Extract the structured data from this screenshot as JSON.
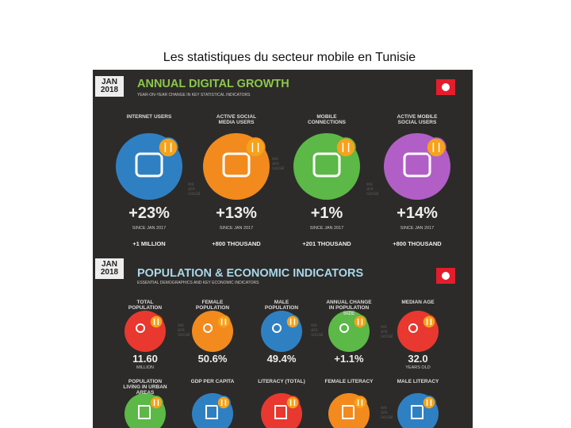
{
  "slide_title": "Les statistiques du secteur mobile en Tunisie",
  "watermark": "we are social",
  "growth": {
    "date": "JAN 2018",
    "title": "ANNUAL DIGITAL GROWTH",
    "subtitle": "YEAR-ON-YEAR CHANGE IN KEY STATISTICAL INDICATORS",
    "items": [
      {
        "label": "INTERNET USERS",
        "value": "+23%",
        "since": "SINCE JAN 2017",
        "absolute": "+1 MILLION",
        "color": "#2f80c3"
      },
      {
        "label": "ACTIVE SOCIAL MEDIA USERS",
        "value": "+13%",
        "since": "SINCE JAN 2017",
        "absolute": "+800 THOUSAND",
        "color": "#f28a1e"
      },
      {
        "label": "MOBILE CONNECTIONS",
        "value": "+1%",
        "since": "SINCE JAN 2017",
        "absolute": "+201 THOUSAND",
        "color": "#5cb847"
      },
      {
        "label": "ACTIVE MOBILE SOCIAL USERS",
        "value": "+14%",
        "since": "SINCE JAN 2017",
        "absolute": "+800 THOUSAND",
        "color": "#b15fc6"
      }
    ]
  },
  "population": {
    "date": "JAN 2018",
    "title": "POPULATION & ECONOMIC INDICATORS",
    "subtitle": "ESSENTIAL DEMOGRAPHICS AND KEY ECONOMIC INDICATORS",
    "items": [
      {
        "label": "TOTAL POPULATION",
        "value": "11.60",
        "unit": "MILLION",
        "color": "#e8382f"
      },
      {
        "label": "FEMALE POPULATION",
        "value": "50.6%",
        "color": "#f28a1e"
      },
      {
        "label": "MALE POPULATION",
        "value": "49.4%",
        "color": "#2f80c3"
      },
      {
        "label": "ANNUAL CHANGE IN POPULATION SIZE",
        "value": "+1.1%",
        "color": "#5cb847"
      },
      {
        "label": "MEDIAN AGE",
        "value": "32.0",
        "unit": "YEARS OLD",
        "color": "#e8382f"
      }
    ],
    "items2": [
      {
        "label": "POPULATION LIVING IN URBAN AREAS",
        "color": "#5cb847"
      },
      {
        "label": "GDP PER CAPITA",
        "color": "#2f80c3"
      },
      {
        "label": "LITERACY (TOTAL)",
        "color": "#e8382f"
      },
      {
        "label": "FEMALE LITERACY",
        "color": "#f28a1e"
      },
      {
        "label": "MALE LITERACY",
        "color": "#2f80c3"
      }
    ]
  }
}
